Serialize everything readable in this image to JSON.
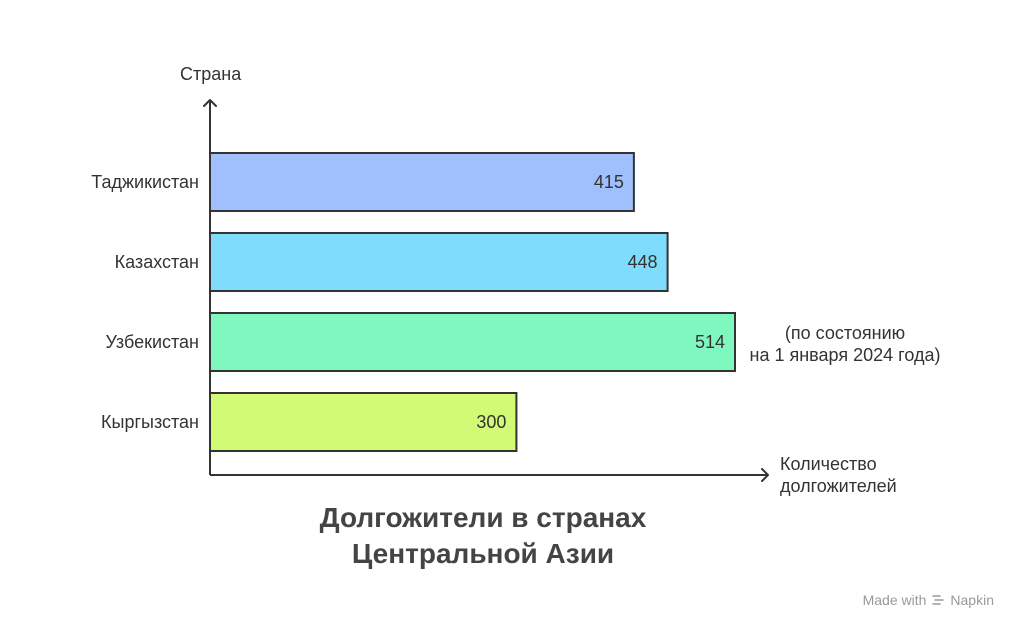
{
  "chart_data": {
    "type": "bar",
    "orientation": "horizontal",
    "categories": [
      "Таджикистан",
      "Казахстан",
      "Узбекистан",
      "Кыргызстан"
    ],
    "values": [
      415,
      448,
      514,
      300
    ],
    "colors": [
      "#9fbffd",
      "#7fdcfd",
      "#7ff8c0",
      "#d3fa74"
    ],
    "title_lines": [
      "Долгожители в странах",
      "Центральной Азии"
    ],
    "ylabel": "Страна",
    "xlabel_lines": [
      "Количество",
      "долгожителей"
    ],
    "annotation_lines": [
      "(по состоянию",
      "на 1 января 2024 года)"
    ],
    "xlim": [
      0,
      600
    ],
    "grid": false,
    "legend": "none"
  },
  "watermark": {
    "prefix": "Made with",
    "brand": "Napkin",
    "icon": "napkin-logo-icon"
  }
}
